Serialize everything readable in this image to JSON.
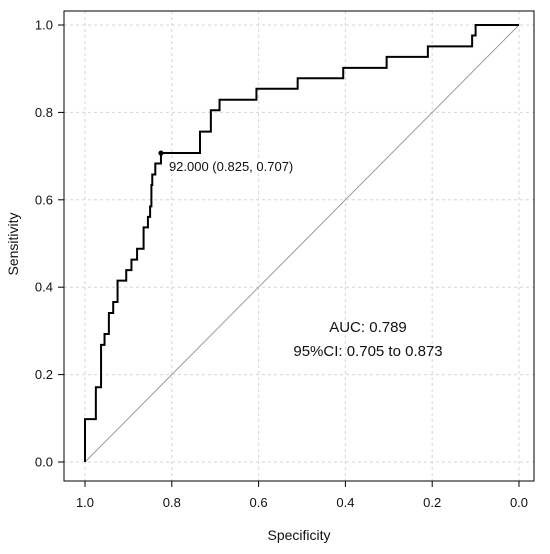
{
  "chart_data": {
    "type": "line",
    "title": "",
    "xlabel": "Specificity",
    "ylabel": "Sensitivity",
    "x_reversed": true,
    "xlim": [
      1.0,
      0.0
    ],
    "ylim": [
      0.0,
      1.0
    ],
    "xticks": [
      1.0,
      0.8,
      0.6,
      0.4,
      0.2,
      0.0
    ],
    "xtick_labels": [
      "1.0",
      "0.8",
      "0.6",
      "0.4",
      "0.2",
      "0.0"
    ],
    "yticks": [
      0.0,
      0.2,
      0.4,
      0.6,
      0.8,
      1.0
    ],
    "ytick_labels": [
      "0.0",
      "0.2",
      "0.4",
      "0.6",
      "0.8",
      "1.0"
    ],
    "grid": true,
    "series": [
      {
        "kind": "roc-curve",
        "color": "#000000",
        "points": [
          [
            1.0,
            0.0
          ],
          [
            1.0,
            0.098
          ],
          [
            0.975,
            0.098
          ],
          [
            0.975,
            0.171
          ],
          [
            0.963,
            0.171
          ],
          [
            0.963,
            0.268
          ],
          [
            0.955,
            0.268
          ],
          [
            0.955,
            0.293
          ],
          [
            0.945,
            0.293
          ],
          [
            0.945,
            0.341
          ],
          [
            0.935,
            0.341
          ],
          [
            0.935,
            0.366
          ],
          [
            0.925,
            0.366
          ],
          [
            0.925,
            0.415
          ],
          [
            0.905,
            0.415
          ],
          [
            0.905,
            0.439
          ],
          [
            0.893,
            0.439
          ],
          [
            0.893,
            0.463
          ],
          [
            0.88,
            0.463
          ],
          [
            0.88,
            0.488
          ],
          [
            0.865,
            0.488
          ],
          [
            0.865,
            0.537
          ],
          [
            0.855,
            0.537
          ],
          [
            0.855,
            0.561
          ],
          [
            0.85,
            0.561
          ],
          [
            0.85,
            0.585
          ],
          [
            0.847,
            0.585
          ],
          [
            0.847,
            0.634
          ],
          [
            0.845,
            0.634
          ],
          [
            0.845,
            0.658
          ],
          [
            0.838,
            0.658
          ],
          [
            0.838,
            0.683
          ],
          [
            0.825,
            0.683
          ],
          [
            0.825,
            0.707
          ],
          [
            0.735,
            0.707
          ],
          [
            0.735,
            0.756
          ],
          [
            0.71,
            0.756
          ],
          [
            0.71,
            0.805
          ],
          [
            0.69,
            0.805
          ],
          [
            0.69,
            0.829
          ],
          [
            0.605,
            0.829
          ],
          [
            0.605,
            0.854
          ],
          [
            0.51,
            0.854
          ],
          [
            0.51,
            0.878
          ],
          [
            0.405,
            0.878
          ],
          [
            0.405,
            0.902
          ],
          [
            0.305,
            0.902
          ],
          [
            0.305,
            0.927
          ],
          [
            0.21,
            0.927
          ],
          [
            0.21,
            0.951
          ],
          [
            0.108,
            0.951
          ],
          [
            0.108,
            0.976
          ],
          [
            0.1,
            0.976
          ],
          [
            0.1,
            1.0
          ],
          [
            0.0,
            1.0
          ]
        ]
      },
      {
        "kind": "reference-diagonal",
        "color": "#9a9a9a",
        "points": [
          [
            1.0,
            0.0
          ],
          [
            0.0,
            1.0
          ]
        ]
      }
    ],
    "threshold_point": {
      "x": 0.825,
      "y": 0.707,
      "label": "92.000 (0.825, 0.707)"
    },
    "annotations": [
      {
        "text": "AUC: 0.789"
      },
      {
        "text": "95%CI: 0.705 to 0.873"
      }
    ]
  }
}
